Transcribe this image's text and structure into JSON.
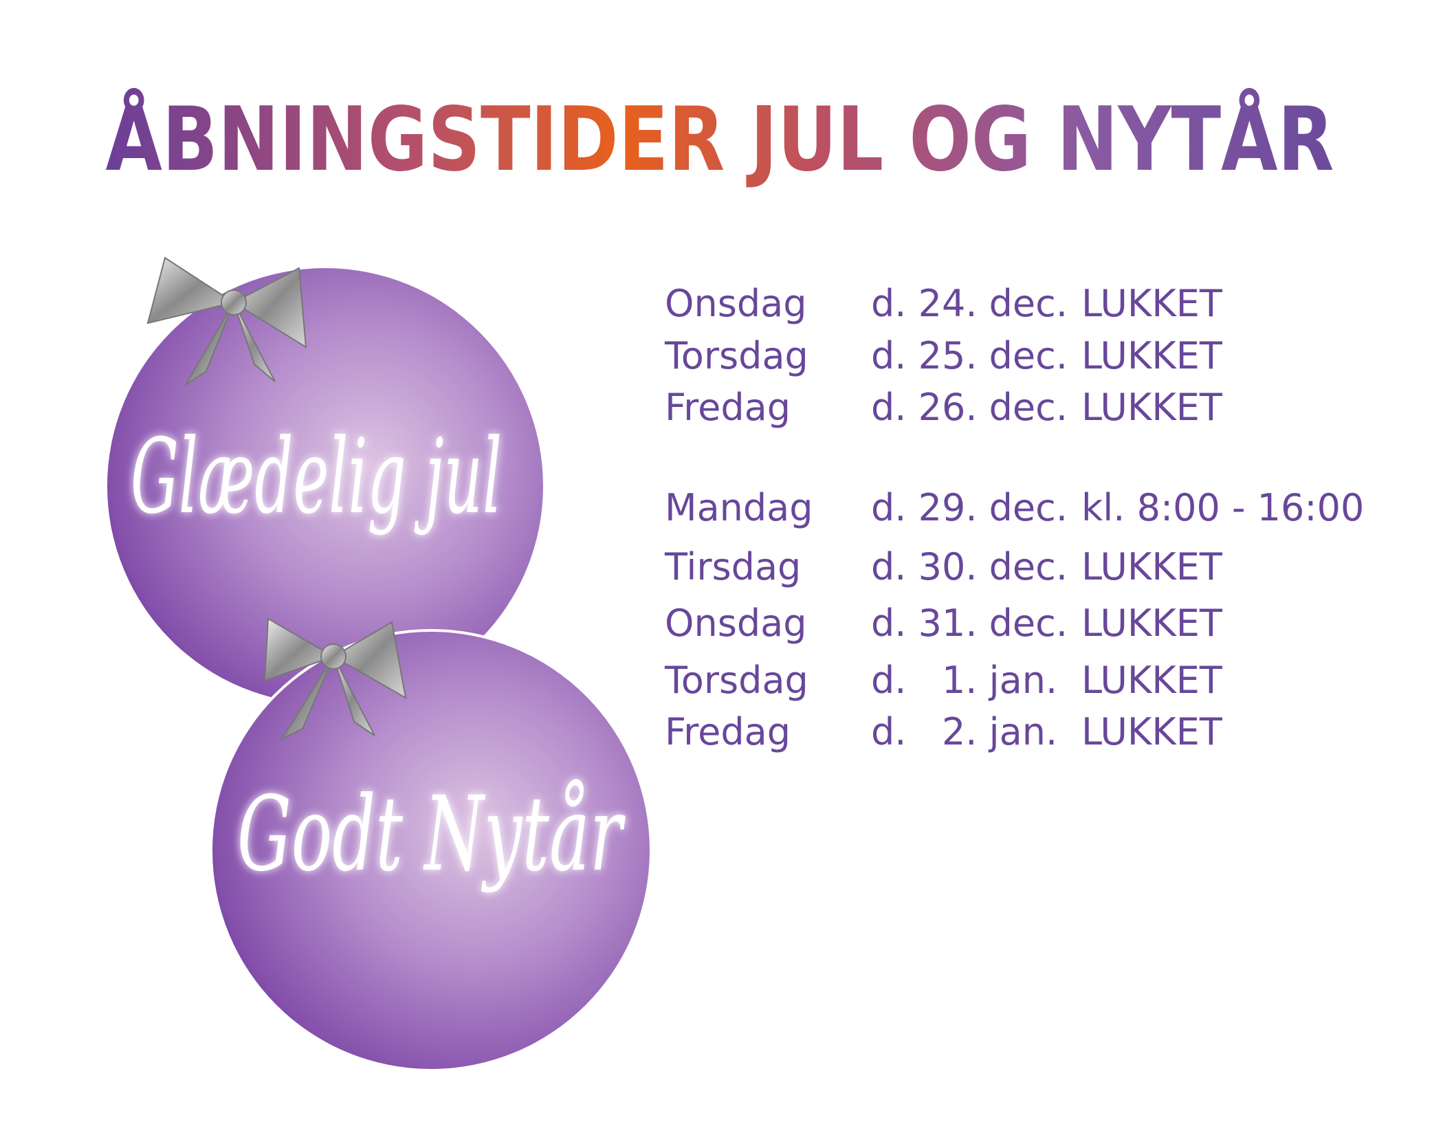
{
  "header": {
    "title": "ÅBNINGSTIDER JUL OG NYTÅR"
  },
  "ornaments": [
    "Glædelig jul",
    "Godt Nytår"
  ],
  "schedule": {
    "rows": [
      [
        "Onsdag",
        "d. 24. dec.",
        "LUKKET"
      ],
      [
        "Torsdag",
        "d. 25. dec.",
        "LUKKET"
      ],
      [
        "Fredag",
        "d. 26. dec.",
        "LUKKET"
      ],
      [
        "Mandag",
        "d. 29. dec.",
        "kl. 8:00 - 16:00"
      ],
      [
        "Tirsdag",
        "d. 30. dec.",
        "LUKKET"
      ],
      [
        "Onsdag",
        "d. 31. dec.",
        "LUKKET"
      ],
      [
        "Torsdag",
        "d.   1. jan.",
        "LUKKET"
      ],
      [
        "Fredag",
        "d.   2. jan.",
        "LUKKET"
      ]
    ]
  }
}
